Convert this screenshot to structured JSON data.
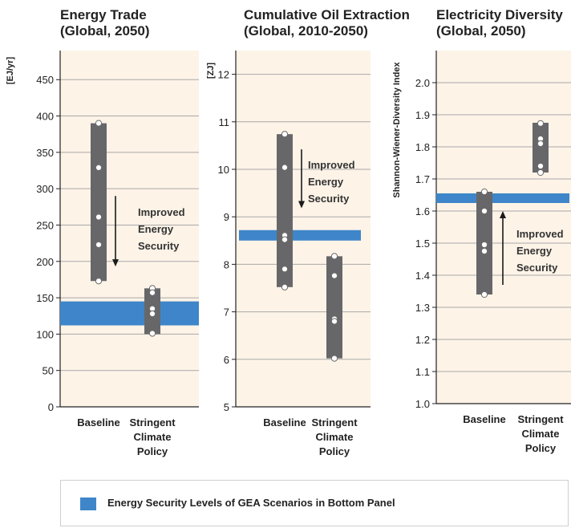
{
  "chart_data": [
    {
      "type": "range",
      "title": [
        "Energy Trade",
        "(Global, 2050)"
      ],
      "ylabel": "[EJ/yr]",
      "ylim": [
        0,
        490
      ],
      "yticks": [
        0,
        50,
        100,
        150,
        200,
        250,
        300,
        350,
        400,
        450
      ],
      "categories": [
        "Baseline",
        "Stringent Climate Policy"
      ],
      "ranges": [
        [
          173,
          390
        ],
        [
          100,
          163
        ]
      ],
      "points": [
        [
          390,
          329,
          261,
          223,
          173
        ],
        [
          163,
          157,
          135,
          128,
          101
        ]
      ],
      "band": [
        112,
        145
      ],
      "annotation": {
        "text": [
          "Improved",
          "Energy",
          "Security"
        ],
        "direction": "down",
        "from": 290,
        "to": 193
      }
    },
    {
      "type": "range",
      "title": [
        "Cumulative Oil Extraction",
        "(Global, 2010-2050)"
      ],
      "ylabel": "[ZJ]",
      "ylim": [
        5,
        12.5
      ],
      "yticks": [
        5,
        6,
        7,
        8,
        9,
        10,
        11,
        12
      ],
      "categories": [
        "Baseline",
        "Stringent Climate Policy"
      ],
      "ranges": [
        [
          7.52,
          10.74
        ],
        [
          6.02,
          8.17
        ]
      ],
      "points": [
        [
          10.74,
          10.04,
          8.61,
          8.52,
          7.9,
          7.52
        ],
        [
          8.17,
          7.76,
          6.85,
          6.8,
          6.02
        ]
      ],
      "band": [
        8.5,
        8.72
      ],
      "annotation": {
        "text": [
          "Improved",
          "Energy",
          "Security"
        ],
        "direction": "down",
        "from": 10.42,
        "to": 9.18
      }
    },
    {
      "type": "range",
      "title": [
        "Electricity Diversity",
        "(Global, 2050)"
      ],
      "ylabel": "Shannon-Wiener-Diversity Index",
      "ylim": [
        1.0,
        2.1
      ],
      "yticks": [
        1.0,
        1.1,
        1.2,
        1.3,
        1.4,
        1.5,
        1.6,
        1.7,
        1.8,
        1.9,
        2.0
      ],
      "categories": [
        "Baseline",
        "Stringent Climate Policy"
      ],
      "ranges": [
        [
          1.34,
          1.66
        ],
        [
          1.72,
          1.875
        ]
      ],
      "points": [
        [
          1.66,
          1.6,
          1.495,
          1.475,
          1.34
        ],
        [
          1.873,
          1.825,
          1.81,
          1.74,
          1.72
        ]
      ],
      "band": [
        1.625,
        1.655
      ],
      "annotation": {
        "text": [
          "Improved",
          "Energy",
          "Security"
        ],
        "direction": "up",
        "from": 1.37,
        "to": 1.6
      }
    }
  ],
  "legend": {
    "label": "Energy Security Levels of GEA Scenarios in Bottom Panel",
    "color": "#3e86c9"
  },
  "colors": {
    "plot_background": "#fdf3e7",
    "range_bar": "#67676a",
    "band": "#3e86c9",
    "grid": "#a9a9a9"
  }
}
